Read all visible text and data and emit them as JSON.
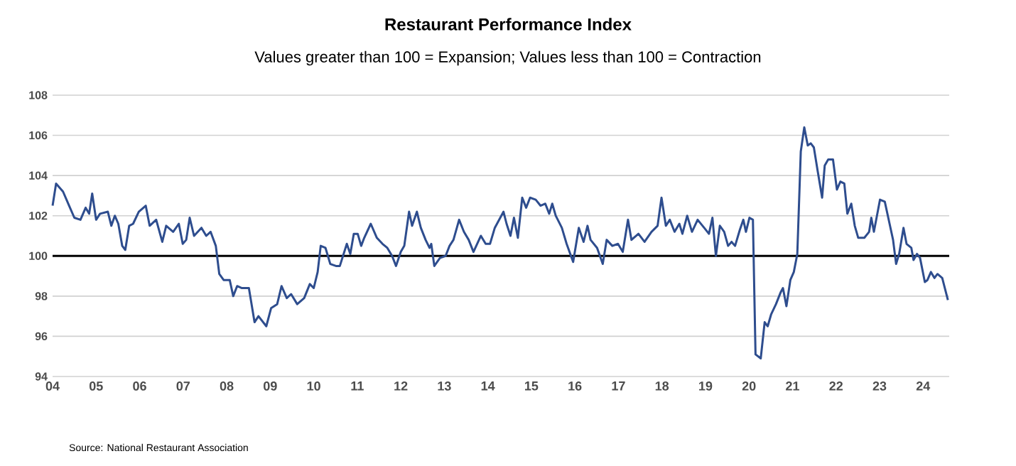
{
  "chart_data": {
    "type": "line",
    "title": "Restaurant Performance Index",
    "subtitle": "Values greater than 100 = Expansion; Values less than 100 = Contraction",
    "annotations": [
      "Source: National Restaurant Association"
    ],
    "x": [
      2004.0,
      2004.08,
      2004.24,
      2004.38,
      2004.5,
      2004.64,
      2004.76,
      2004.84,
      2004.91,
      2005.0,
      2005.09,
      2005.27,
      2005.35,
      2005.43,
      2005.51,
      2005.6,
      2005.67,
      2005.76,
      2005.85,
      2005.98,
      2006.14,
      2006.23,
      2006.38,
      2006.52,
      2006.61,
      2006.77,
      2006.9,
      2006.99,
      2007.07,
      2007.15,
      2007.25,
      2007.42,
      2007.53,
      2007.63,
      2007.75,
      2007.83,
      2007.93,
      2008.07,
      2008.15,
      2008.24,
      2008.35,
      2008.51,
      2008.64,
      2008.73,
      2008.91,
      2009.02,
      2009.16,
      2009.26,
      2009.38,
      2009.48,
      2009.62,
      2009.78,
      2009.91,
      2010.0,
      2010.09,
      2010.16,
      2010.27,
      2010.38,
      2010.51,
      2010.6,
      2010.76,
      2010.84,
      2010.92,
      2011.01,
      2011.09,
      2011.16,
      2011.31,
      2011.45,
      2011.58,
      2011.69,
      2011.8,
      2011.89,
      2012.0,
      2012.08,
      2012.19,
      2012.26,
      2012.37,
      2012.46,
      2012.57,
      2012.66,
      2012.7,
      2012.77,
      2012.9,
      2013.03,
      2013.12,
      2013.21,
      2013.34,
      2013.45,
      2013.56,
      2013.67,
      2013.84,
      2013.95,
      2014.05,
      2014.16,
      2014.36,
      2014.43,
      2014.52,
      2014.6,
      2014.69,
      2014.79,
      2014.88,
      2014.97,
      2015.1,
      2015.21,
      2015.32,
      2015.41,
      2015.48,
      2015.56,
      2015.7,
      2015.81,
      2015.96,
      2016.09,
      2016.2,
      2016.29,
      2016.36,
      2016.51,
      2016.64,
      2016.73,
      2016.86,
      2016.99,
      2017.1,
      2017.22,
      2017.3,
      2017.46,
      2017.6,
      2017.76,
      2017.9,
      2017.99,
      2018.09,
      2018.18,
      2018.29,
      2018.4,
      2018.47,
      2018.58,
      2018.69,
      2018.82,
      2018.97,
      2019.08,
      2019.16,
      2019.24,
      2019.33,
      2019.43,
      2019.52,
      2019.6,
      2019.68,
      2019.79,
      2019.87,
      2019.93,
      2020.01,
      2020.09,
      2020.15,
      2020.27,
      2020.36,
      2020.43,
      2020.51,
      2020.62,
      2020.73,
      2020.78,
      2020.86,
      2020.95,
      2021.03,
      2021.11,
      2021.19,
      2021.27,
      2021.35,
      2021.42,
      2021.49,
      2021.58,
      2021.68,
      2021.74,
      2021.82,
      2021.93,
      2022.02,
      2022.1,
      2022.19,
      2022.26,
      2022.35,
      2022.43,
      2022.51,
      2022.65,
      2022.76,
      2022.81,
      2022.87,
      2023.01,
      2023.12,
      2023.23,
      2023.31,
      2023.38,
      2023.45,
      2023.55,
      2023.62,
      2023.73,
      2023.78,
      2023.86,
      2023.93,
      2024.04,
      2024.1,
      2024.18,
      2024.26,
      2024.33,
      2024.44,
      2024.57
    ],
    "values": [
      102.5,
      103.6,
      103.2,
      102.5,
      101.9,
      101.8,
      102.4,
      102.1,
      103.1,
      101.8,
      102.1,
      102.2,
      101.5,
      102.0,
      101.6,
      100.5,
      100.3,
      101.5,
      101.6,
      102.2,
      102.5,
      101.5,
      101.8,
      100.7,
      101.5,
      101.2,
      101.6,
      100.6,
      100.8,
      101.9,
      101.0,
      101.4,
      101.0,
      101.2,
      100.5,
      99.1,
      98.8,
      98.8,
      98.0,
      98.5,
      98.4,
      98.4,
      96.7,
      97.0,
      96.5,
      97.4,
      97.6,
      98.5,
      97.9,
      98.1,
      97.6,
      97.9,
      98.6,
      98.4,
      99.2,
      100.5,
      100.4,
      99.6,
      99.5,
      99.5,
      100.6,
      100.1,
      101.1,
      101.1,
      100.5,
      100.9,
      101.6,
      100.9,
      100.6,
      100.4,
      100.0,
      99.5,
      100.2,
      100.5,
      102.2,
      101.5,
      102.2,
      101.4,
      100.8,
      100.4,
      100.6,
      99.5,
      99.9,
      100.0,
      100.5,
      100.8,
      101.8,
      101.2,
      100.8,
      100.2,
      101.0,
      100.6,
      100.6,
      101.4,
      102.2,
      101.6,
      101.0,
      101.9,
      100.9,
      102.9,
      102.4,
      102.9,
      102.8,
      102.5,
      102.6,
      102.1,
      102.6,
      102.0,
      101.4,
      100.6,
      99.7,
      101.4,
      100.7,
      101.5,
      100.8,
      100.4,
      99.6,
      100.8,
      100.5,
      100.6,
      100.2,
      101.8,
      100.8,
      101.1,
      100.7,
      101.2,
      101.5,
      102.9,
      101.5,
      101.8,
      101.2,
      101.6,
      101.1,
      102.0,
      101.2,
      101.8,
      101.4,
      101.1,
      101.9,
      100.0,
      101.5,
      101.2,
      100.5,
      100.7,
      100.5,
      101.3,
      101.8,
      101.2,
      101.9,
      101.8,
      95.1,
      94.9,
      96.7,
      96.5,
      97.1,
      97.6,
      98.2,
      98.4,
      97.5,
      98.8,
      99.2,
      100.1,
      105.2,
      106.4,
      105.5,
      105.6,
      105.4,
      104.2,
      102.9,
      104.5,
      104.8,
      104.8,
      103.3,
      103.7,
      103.6,
      102.1,
      102.6,
      101.5,
      100.9,
      100.9,
      101.2,
      101.9,
      101.2,
      102.8,
      102.7,
      101.6,
      100.8,
      99.6,
      100.1,
      101.4,
      100.6,
      100.4,
      99.8,
      100.1,
      99.9,
      98.7,
      98.8,
      99.2,
      98.9,
      99.1,
      98.9,
      97.8
    ],
    "color": "#2e4d8e",
    "line_style": "solid",
    "marker": "none",
    "xlim": [
      2004,
      2024.6
    ],
    "ylim": [
      94,
      108
    ],
    "xticks": [
      {
        "value": 2004,
        "label": "04"
      },
      {
        "value": 2005,
        "label": "05"
      },
      {
        "value": 2006,
        "label": "06"
      },
      {
        "value": 2007,
        "label": "07"
      },
      {
        "value": 2008,
        "label": "08"
      },
      {
        "value": 2009,
        "label": "09"
      },
      {
        "value": 2010,
        "label": "10"
      },
      {
        "value": 2011,
        "label": "11"
      },
      {
        "value": 2012,
        "label": "12"
      },
      {
        "value": 2013,
        "label": "13"
      },
      {
        "value": 2014,
        "label": "14"
      },
      {
        "value": 2015,
        "label": "15"
      },
      {
        "value": 2016,
        "label": "16"
      },
      {
        "value": 2017,
        "label": "17"
      },
      {
        "value": 2018,
        "label": "18"
      },
      {
        "value": 2019,
        "label": "19"
      },
      {
        "value": 2020,
        "label": "20"
      },
      {
        "value": 2021,
        "label": "21"
      },
      {
        "value": 2022,
        "label": "22"
      },
      {
        "value": 2023,
        "label": "23"
      },
      {
        "value": 2024,
        "label": "24"
      }
    ],
    "yticks": [
      94,
      96,
      98,
      100,
      102,
      104,
      106,
      108
    ],
    "grid": "y",
    "ref_lines": [
      {
        "axis": "y",
        "value": 100,
        "color": "#000000"
      }
    ]
  }
}
